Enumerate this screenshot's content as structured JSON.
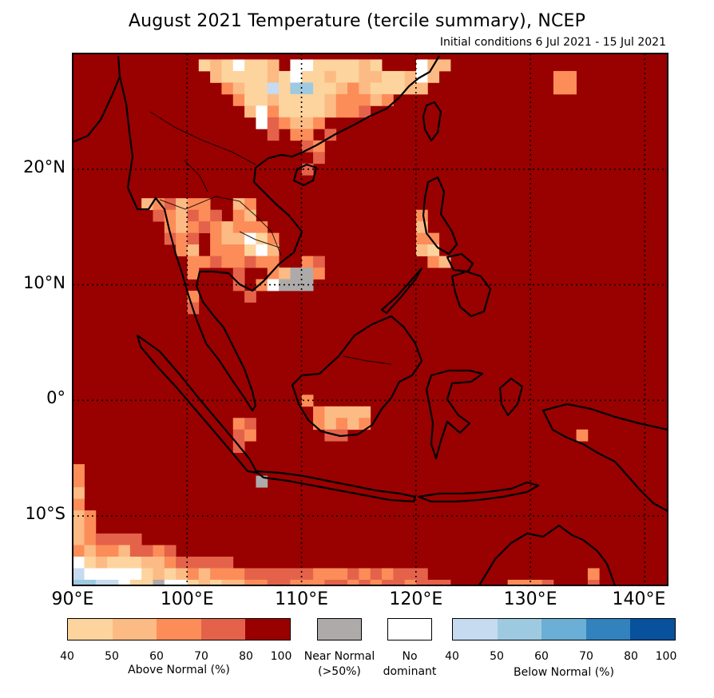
{
  "title": "August 2021 Temperature (tercile summary), NCEP",
  "subtitle": "Initial conditions 6 Jul 2021 - 15 Jul 2021",
  "map": {
    "lon_range": [
      90,
      142
    ],
    "lat_range": [
      -16,
      30
    ],
    "grid_lons": [
      100,
      110,
      120,
      130,
      140
    ],
    "grid_lats": [
      20,
      10,
      0,
      -10
    ],
    "lat_labels": [
      "20°N",
      "10°N",
      "0°",
      "10°S"
    ],
    "lon_labels": [
      "90°E",
      "100°E",
      "110°E",
      "120°E",
      "130°E",
      "140°E"
    ]
  },
  "colors": {
    "above": [
      "#fdd49e",
      "#fcbb84",
      "#fc8d59",
      "#e5624a",
      "#990000"
    ],
    "below": [
      "#c6dbef",
      "#9ecae1",
      "#6baed6",
      "#3182bd",
      "#08519c"
    ],
    "near_normal": "#aeaaaa",
    "no_dominant": "#ffffff",
    "background": "#990000"
  },
  "legend": {
    "above": {
      "label": "Above Normal (%)",
      "ticks": [
        "40",
        "50",
        "60",
        "70",
        "80",
        "100"
      ]
    },
    "near_normal": {
      "label_line1": "Near Normal",
      "label_line2": "(>50%)"
    },
    "no_dominant": {
      "label_line1": "No",
      "label_line2": "dominant"
    },
    "below": {
      "label": "Below Normal (%)",
      "ticks": [
        "40",
        "50",
        "60",
        "70",
        "80",
        "100"
      ]
    }
  }
}
